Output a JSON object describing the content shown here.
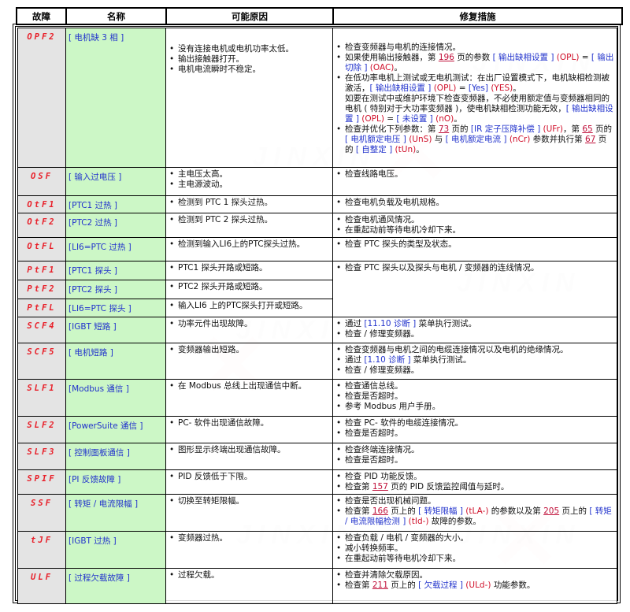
{
  "headers": [
    "故障",
    "名称",
    "可能原因",
    "修复措施"
  ],
  "watermark": {
    "text": "JINXIN",
    "brand": "津信"
  },
  "colors": {
    "code": "#e8202a",
    "name_bg": "#ccf7c6",
    "code_bg": "#e4e4e4",
    "link": "#2233cc"
  },
  "rows": [
    {
      "code": "OPF2",
      "name": "[ 电机缺 3 相 ]",
      "causes": [
        "没有连接电机或电机功率太低。",
        "输出接触器打开。",
        "电机电流瞬时不稳定。"
      ]
    },
    {
      "code": "OSF",
      "name": "[ 输入过电压 ]",
      "causes": [
        "主电压太高。",
        "主电源波动。"
      ]
    },
    {
      "code": "OtF1",
      "name": "[PTC1 过热 ]",
      "causes": [
        "检测到 PTC 1 探头过热。"
      ]
    },
    {
      "code": "OtF2",
      "name": "[PTC2 过热 ]",
      "causes": [
        "检测到 PTC 2 探头过热。"
      ]
    },
    {
      "code": "OtFL",
      "name": "[LI6=PTC 过热 ]",
      "causes": [
        "检测到输入LI6上的PTC探头过热。"
      ]
    },
    {
      "code": "PtF1",
      "name": "[PTC1 探头 ]",
      "causes": [
        "PTC1 探头开路或短路。"
      ]
    },
    {
      "code": "PtF2",
      "name": "[PTC2 探头 ]",
      "causes": [
        "PTC2 探头开路或短路。"
      ]
    },
    {
      "code": "PtFL",
      "name": "[LI6=PTC 探头 ]",
      "causes": [
        "输入LI6 上的PTC探头打开或短路。"
      ]
    },
    {
      "code": "SCF4",
      "name": "[IGBT 短路 ]",
      "causes": [
        "功率元件出现故障。"
      ]
    },
    {
      "code": "SCF5",
      "name": "[ 电机短路 ]",
      "causes": [
        "变频器输出短路。"
      ]
    },
    {
      "code": "SLF1",
      "name": "[Modbus 通信 ]",
      "causes": [
        "在 Modbus 总线上出现通信中断。"
      ]
    },
    {
      "code": "SLF2",
      "name": "[PowerSuite 通信 ]",
      "causes": [
        "PC- 软件出现通信故障。"
      ]
    },
    {
      "code": "SLF3",
      "name": "[ 控制面板通信 ]",
      "causes": [
        "图形显示终端出现通信故障。"
      ]
    },
    {
      "code": "SPIF",
      "name": "[PI 反馈故障 ]",
      "causes": [
        "PID 反馈低于下限。"
      ]
    },
    {
      "code": "SSF",
      "name": "[ 转矩 / 电流限幅 ]",
      "causes": [
        "切换至转矩限幅。"
      ]
    },
    {
      "code": "tJF",
      "name": "[IGBT 过热 ]",
      "causes": [
        "变频器过热。"
      ]
    },
    {
      "code": "ULF",
      "name": "[ 过程欠载故障 ]",
      "causes": [
        "过程欠载。"
      ]
    }
  ],
  "fixes": [
    [
      [
        {
          "t": "检查变频器与电机的连接情况。"
        }
      ],
      [
        {
          "t": "如果使用输出接触器，第 "
        },
        {
          "p": "196"
        },
        {
          "t": " 页的参数 "
        },
        {
          "b": "[ 输出缺相设置 ]"
        },
        {
          "r": " (OPL) "
        },
        {
          "t": "= "
        },
        {
          "b": "[ 输出切除 ]"
        },
        {
          "r": " (OAC)"
        },
        {
          "t": "。"
        }
      ],
      [
        {
          "t": "在低功率电机上测试或无电机测试：在出厂设置模式下，电机缺相检测被激活，"
        },
        {
          "b": "[ 输出缺相设置 ]"
        },
        {
          "r": " (OPL)"
        },
        {
          "t": " = "
        },
        {
          "b": "[Yes]"
        },
        {
          "r": " (YES)"
        },
        {
          "t": "。"
        }
      ],
      [
        {
          "t": "如要在测试中或维护环境下检查变频器，不必使用额定值与变频器相同的电机 ( 特别对于大功率变频器 )，使电机缺相检测功能无效，"
        },
        {
          "b": "[ 输出缺相设置 ]"
        },
        {
          "r": " (OPL)"
        },
        {
          "t": " = "
        },
        {
          "b": "[ 未设置 ]"
        },
        {
          "r": " (nO)"
        },
        {
          "t": "。"
        }
      ],
      [
        {
          "t": "检查并优化下列参数：第 "
        },
        {
          "p": "73"
        },
        {
          "t": " 页的 "
        },
        {
          "b": "[IR 定子压降补偿 ]"
        },
        {
          "r": " (UFr)"
        },
        {
          "t": "，第 "
        },
        {
          "p": "65"
        },
        {
          "t": " 页的 "
        },
        {
          "b": "[ 电机额定电压 ]"
        },
        {
          "r": " (UnS)"
        },
        {
          "t": " 与 "
        },
        {
          "b": "[ 电机额定电流 ]"
        },
        {
          "r": " (nCr)"
        },
        {
          "t": " 参数并执行第 "
        },
        {
          "p": "67"
        },
        {
          "t": " 页的 "
        },
        {
          "b": "[ 自整定 ]"
        },
        {
          "r": " (tUn)"
        },
        {
          "t": "。"
        }
      ]
    ],
    [
      [
        {
          "t": "检查线路电压。"
        }
      ]
    ],
    [
      [
        {
          "t": "检查电机负载及电机规格。"
        }
      ]
    ],
    [
      [
        {
          "t": "检查电机通风情况。"
        }
      ],
      [
        {
          "t": "在重起动前等待电机冷却下来。"
        }
      ]
    ],
    [
      [
        {
          "t": "检查 PTC 探头的类型及状态。"
        }
      ]
    ],
    [
      [
        {
          "t": "检查 PTC 探头以及探头与电机 / 变频器的连线情况。"
        }
      ]
    ],
    [
      [
        {
          "t": "通过 "
        },
        {
          "b": "[11.10 诊断 ]"
        },
        {
          "t": " 菜单执行测试。"
        }
      ],
      [
        {
          "t": "检查 / 修理变频器。"
        }
      ]
    ],
    [
      [
        {
          "t": "检查变频器与电机之间的电缆连接情况以及电机的绝缘情况。"
        }
      ],
      [
        {
          "t": "通过 "
        },
        {
          "b": "[1.10 诊断 ]"
        },
        {
          "t": " 菜单执行测试。"
        }
      ],
      [
        {
          "t": "检查 / 修理变频器。"
        }
      ]
    ],
    [
      [
        {
          "t": "检查通信总线。"
        }
      ],
      [
        {
          "t": "检查是否超时。"
        }
      ],
      [
        {
          "t": "参考 Modbus 用户手册。"
        }
      ]
    ],
    [
      [
        {
          "t": "检查 PC- 软件的电缆连接情况。"
        }
      ],
      [
        {
          "t": "检查是否超时。"
        }
      ]
    ],
    [
      [
        {
          "t": "检查终端连接情况。"
        }
      ],
      [
        {
          "t": "检查是否超时。"
        }
      ]
    ],
    [
      [
        {
          "t": "检查 PID 功能反馈。"
        }
      ],
      [
        {
          "t": "检查第 "
        },
        {
          "p": "157"
        },
        {
          "t": " 页的 PID 反馈监控阈值与延时。"
        }
      ]
    ],
    [
      [
        {
          "t": "检查是否出现机械问题。"
        }
      ],
      [
        {
          "t": "检查第 "
        },
        {
          "p": "166"
        },
        {
          "t": " 页上的 "
        },
        {
          "b": "[ 转矩限幅 ]"
        },
        {
          "r": " (tLA-)"
        },
        {
          "t": " 的参数以及第 "
        },
        {
          "p": "205"
        },
        {
          "t": " 页上的 "
        },
        {
          "b": "[ 转矩 / 电流限幅检测 ]"
        },
        {
          "r": " (tId-)"
        },
        {
          "t": " 故障的参数。"
        }
      ]
    ],
    [
      [
        {
          "t": "检查负载 / 电机 / 变频器的大小。"
        }
      ],
      [
        {
          "t": "减小转换频率。"
        }
      ],
      [
        {
          "t": "在重起动前等待电机冷却下来。"
        }
      ]
    ],
    [
      [
        {
          "t": "检查并清除欠载原因。"
        }
      ],
      [
        {
          "t": "检查第 "
        },
        {
          "p": "211"
        },
        {
          "t": " 页上的 "
        },
        {
          "b": "[ 欠载过程 ]"
        },
        {
          "r": " (ULd-)"
        },
        {
          "t": " 功能参数。"
        }
      ]
    ]
  ]
}
